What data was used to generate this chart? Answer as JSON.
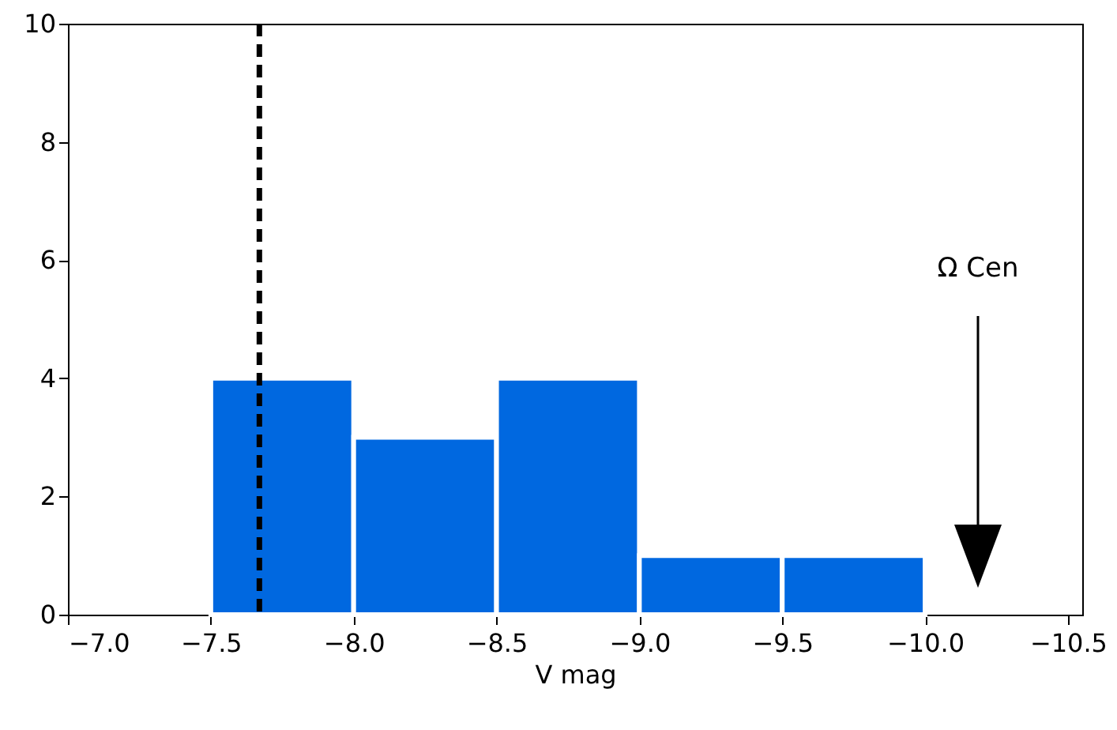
{
  "chart_data": {
    "type": "histogram",
    "xlabel": "V mag",
    "bins": [
      -7.5,
      -8.0,
      -8.5,
      -9.0,
      -9.5,
      -10.0
    ],
    "values": [
      4,
      3,
      4,
      1,
      1
    ],
    "color": "#0068e0",
    "xlim": [
      -7.0,
      -10.55
    ],
    "xticks": [
      {
        "value": -7.0,
        "label": "−7.0"
      },
      {
        "value": -7.5,
        "label": "−7.5"
      },
      {
        "value": -8.0,
        "label": "−8.0"
      },
      {
        "value": -8.5,
        "label": "−8.5"
      },
      {
        "value": -9.0,
        "label": "−9.0"
      },
      {
        "value": -9.5,
        "label": "−9.5"
      },
      {
        "value": -10.0,
        "label": "−10.0"
      },
      {
        "value": -10.5,
        "label": "−10.5"
      }
    ],
    "ylim": [
      0,
      10
    ],
    "yticks": [
      0,
      2,
      4,
      6,
      8,
      10
    ],
    "ref_lines": [
      {
        "axis": "x",
        "value": -7.67,
        "color": "#000000",
        "line_style": "dashed"
      }
    ],
    "annotations": [
      "Ω Cen"
    ]
  }
}
